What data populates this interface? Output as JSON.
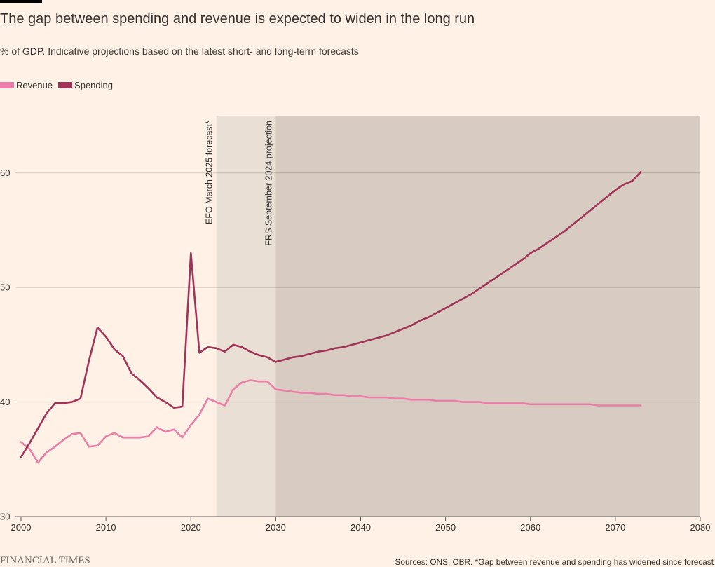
{
  "chart_data": {
    "type": "line",
    "title": "The gap between spending and revenue is expected to widen in the long run",
    "subtitle": "% of GDP. Indicative projections based on the latest short- and long-term forecasts",
    "xlabel": "",
    "ylabel": "",
    "xlim": [
      2000,
      2080
    ],
    "ylim": [
      30,
      65
    ],
    "xticks": [
      2000,
      2010,
      2020,
      2030,
      2040,
      2050,
      2060,
      2070,
      2080
    ],
    "yticks": [
      30,
      40,
      50,
      60
    ],
    "grid": true,
    "legend_position": "top-left",
    "x": [
      2000,
      2001,
      2002,
      2003,
      2004,
      2005,
      2006,
      2007,
      2008,
      2009,
      2010,
      2011,
      2012,
      2013,
      2014,
      2015,
      2016,
      2017,
      2018,
      2019,
      2020,
      2021,
      2022,
      2023,
      2024,
      2025,
      2026,
      2027,
      2028,
      2029,
      2030,
      2031,
      2032,
      2033,
      2034,
      2035,
      2036,
      2037,
      2038,
      2039,
      2040,
      2041,
      2042,
      2043,
      2044,
      2045,
      2046,
      2047,
      2048,
      2049,
      2050,
      2051,
      2052,
      2053,
      2054,
      2055,
      2056,
      2057,
      2058,
      2059,
      2060,
      2061,
      2062,
      2063,
      2064,
      2065,
      2066,
      2067,
      2068,
      2069,
      2070,
      2071,
      2072,
      2073
    ],
    "series": [
      {
        "name": "Revenue",
        "color": "#eb7ea8",
        "values": [
          36.5,
          35.9,
          34.7,
          35.6,
          36.1,
          36.7,
          37.2,
          37.3,
          36.1,
          36.2,
          37.0,
          37.3,
          36.9,
          36.9,
          36.9,
          37.0,
          37.8,
          37.4,
          37.6,
          36.9,
          38.0,
          38.9,
          40.3,
          40.0,
          39.7,
          41.1,
          41.7,
          41.9,
          41.8,
          41.8,
          41.1,
          41.0,
          40.9,
          40.8,
          40.8,
          40.7,
          40.7,
          40.6,
          40.6,
          40.5,
          40.5,
          40.4,
          40.4,
          40.4,
          40.3,
          40.3,
          40.2,
          40.2,
          40.2,
          40.1,
          40.1,
          40.1,
          40.0,
          40.0,
          40.0,
          39.9,
          39.9,
          39.9,
          39.9,
          39.9,
          39.8,
          39.8,
          39.8,
          39.8,
          39.8,
          39.8,
          39.8,
          39.8,
          39.7,
          39.7,
          39.7,
          39.7,
          39.7,
          39.7
        ]
      },
      {
        "name": "Spending",
        "color": "#a03357",
        "values": [
          35.2,
          36.4,
          37.7,
          39.0,
          39.9,
          39.9,
          40.0,
          40.3,
          43.6,
          46.5,
          45.7,
          44.6,
          44.0,
          42.5,
          41.9,
          41.2,
          40.4,
          40.0,
          39.5,
          39.6,
          53.0,
          44.3,
          44.8,
          44.7,
          44.4,
          45.0,
          44.8,
          44.4,
          44.1,
          43.9,
          43.5,
          43.7,
          43.9,
          44.0,
          44.2,
          44.4,
          44.5,
          44.7,
          44.8,
          45.0,
          45.2,
          45.4,
          45.6,
          45.8,
          46.1,
          46.4,
          46.7,
          47.1,
          47.4,
          47.8,
          48.2,
          48.6,
          49.0,
          49.4,
          49.9,
          50.4,
          50.9,
          51.4,
          51.9,
          52.4,
          53.0,
          53.4,
          53.9,
          54.4,
          54.9,
          55.5,
          56.1,
          56.7,
          57.3,
          57.9,
          58.5,
          59.0,
          59.3,
          60.1
        ]
      }
    ],
    "regions": [
      {
        "start": 2023,
        "end": 2030,
        "label": "EFO March 2025 forecast*",
        "color": "#eadfd4"
      },
      {
        "start": 2030,
        "end": 2080,
        "label": "FRS September 2024 projection",
        "color": "#d8cbc1"
      }
    ]
  },
  "footer": {
    "brand": "FINANCIAL TIMES",
    "sources": "Sources: ONS, OBR. *Gap between revenue and spending has widened since forecast"
  }
}
